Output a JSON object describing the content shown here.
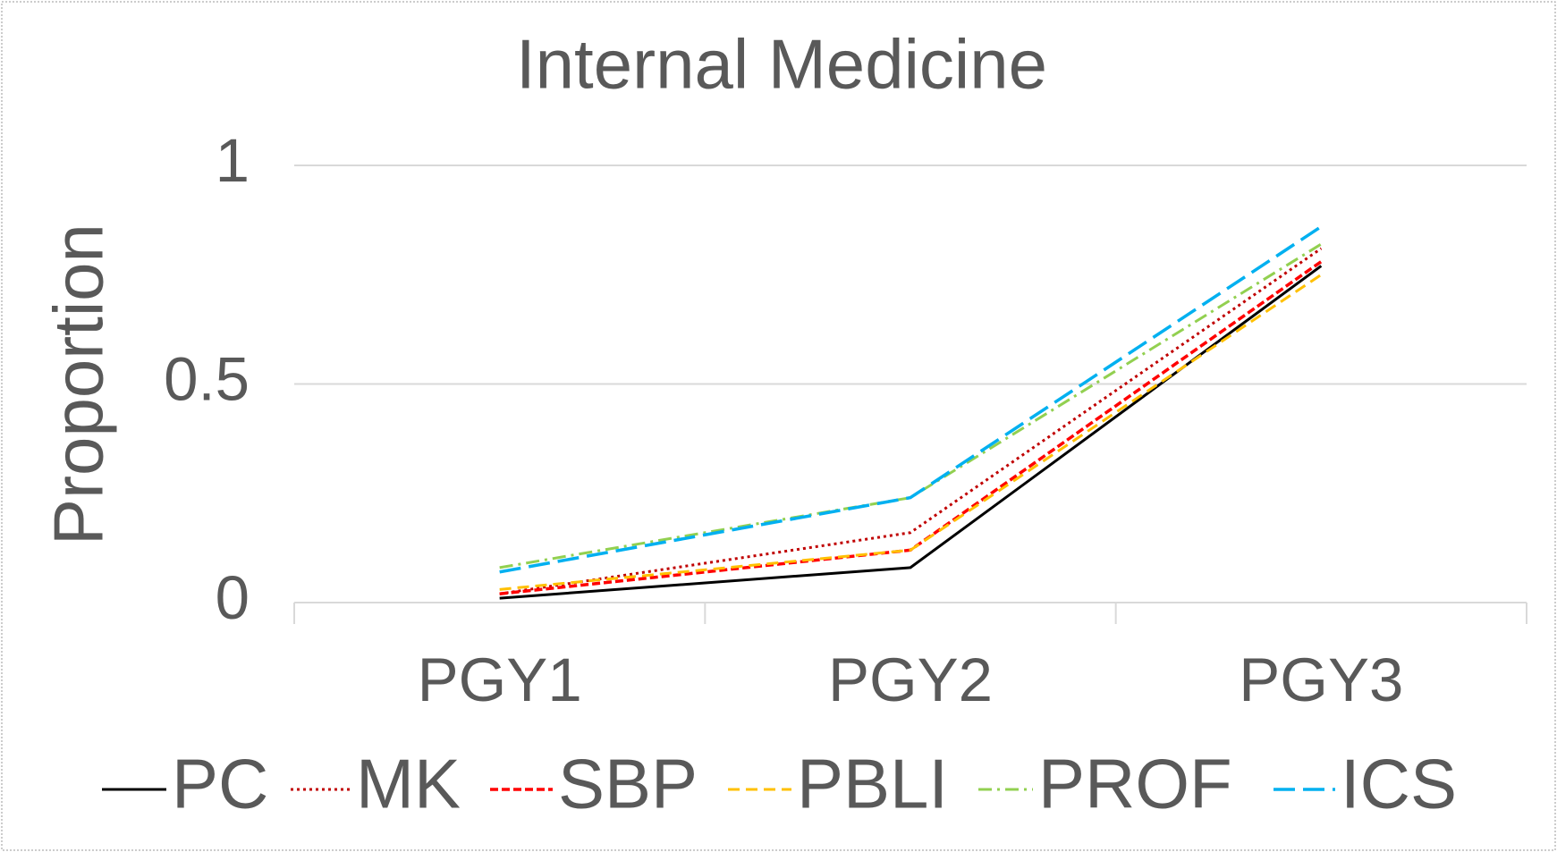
{
  "chart_data": {
    "type": "line",
    "title": "Internal Medicine",
    "y_label": "Proportion",
    "categories": [
      "PGY1",
      "PGY2",
      "PGY3"
    ],
    "series": [
      {
        "name": "PC",
        "color": "#000000",
        "values": [
          0.01,
          0.08,
          0.77
        ]
      },
      {
        "name": "MK",
        "color": "#c00000",
        "values": [
          0.02,
          0.16,
          0.81
        ]
      },
      {
        "name": "SBP",
        "color": "#ff0000",
        "values": [
          0.02,
          0.12,
          0.78
        ]
      },
      {
        "name": "PBLI",
        "color": "#ffc000",
        "values": [
          0.03,
          0.12,
          0.75
        ]
      },
      {
        "name": "PROF",
        "color": "#92d050",
        "values": [
          0.08,
          0.24,
          0.82
        ]
      },
      {
        "name": "ICS",
        "color": "#00b0f0",
        "values": [
          0.07,
          0.24,
          0.86
        ]
      }
    ],
    "ylim": [
      0,
      1
    ],
    "yticks": [
      0,
      0.5,
      1
    ],
    "grid": true,
    "legend": "bottom"
  }
}
